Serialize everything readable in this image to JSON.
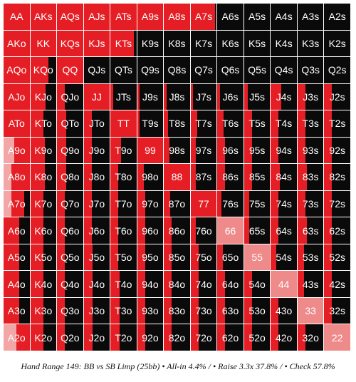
{
  "colors": {
    "allin": "#e41e24",
    "raise": "#e41e24",
    "pair_raise": "#ee8a8a",
    "check": "#0a0a0a",
    "text": "#ffffff"
  },
  "caption": "Hand Range 149: BB vs SB Limp (25bb) • All-in 4.4% / • Raise 3.3x 37.8% / • Check 57.8%",
  "grid": {
    "labels": [
      [
        "AA",
        "AKs",
        "AQs",
        "AJs",
        "ATs",
        "A9s",
        "A8s",
        "A7s",
        "A6s",
        "A5s",
        "A4s",
        "A3s",
        "A2s"
      ],
      [
        "AKo",
        "KK",
        "KQs",
        "KJs",
        "KTs",
        "K9s",
        "K8s",
        "K7s",
        "K6s",
        "K5s",
        "K4s",
        "K3s",
        "K2s"
      ],
      [
        "AQo",
        "KQo",
        "QQ",
        "QJs",
        "QTs",
        "Q9s",
        "Q8s",
        "Q7s",
        "Q6s",
        "Q5s",
        "Q4s",
        "Q3s",
        "Q2s"
      ],
      [
        "AJo",
        "KJo",
        "QJo",
        "JJ",
        "JTs",
        "J9s",
        "J8s",
        "J7s",
        "J6s",
        "J5s",
        "J4s",
        "J3s",
        "J2s"
      ],
      [
        "ATo",
        "KTo",
        "QTo",
        "JTo",
        "TT",
        "T9s",
        "T8s",
        "T7s",
        "T6s",
        "T5s",
        "T4s",
        "T3s",
        "T2s"
      ],
      [
        "A9o",
        "K9o",
        "Q9o",
        "J9o",
        "T9o",
        "99",
        "98s",
        "97s",
        "96s",
        "95s",
        "94s",
        "93s",
        "92s"
      ],
      [
        "A8o",
        "K8o",
        "Q8o",
        "J8o",
        "T8o",
        "98o",
        "88",
        "87s",
        "86s",
        "85s",
        "84s",
        "83s",
        "82s"
      ],
      [
        "A7o",
        "K7o",
        "Q7o",
        "J7o",
        "T7o",
        "97o",
        "87o",
        "77",
        "76s",
        "75s",
        "74s",
        "73s",
        "72s"
      ],
      [
        "A6o",
        "K6o",
        "Q6o",
        "J6o",
        "T6o",
        "96o",
        "86o",
        "76o",
        "66",
        "65s",
        "64s",
        "63s",
        "62s"
      ],
      [
        "A5o",
        "K5o",
        "Q5o",
        "J5o",
        "T5o",
        "95o",
        "85o",
        "75o",
        "65o",
        "55",
        "54s",
        "53s",
        "52s"
      ],
      [
        "A4o",
        "K4o",
        "Q4o",
        "J4o",
        "T4o",
        "94o",
        "84o",
        "74o",
        "64o",
        "54o",
        "44",
        "43s",
        "42s"
      ],
      [
        "A3o",
        "K3o",
        "Q3o",
        "J3o",
        "T3o",
        "93o",
        "83o",
        "73o",
        "63o",
        "53o",
        "43o",
        "33",
        "32s"
      ],
      [
        "A2o",
        "K2o",
        "Q2o",
        "J2o",
        "T2o",
        "92o",
        "82o",
        "72o",
        "62o",
        "52o",
        "42o",
        "32o",
        "22"
      ]
    ],
    "freq": [
      [
        [
          0,
          1,
          0
        ],
        [
          0,
          1,
          0
        ],
        [
          0,
          1,
          0
        ],
        [
          0,
          1,
          0
        ],
        [
          0,
          1,
          0
        ],
        [
          0,
          1,
          0
        ],
        [
          0,
          1,
          0
        ],
        [
          0,
          0.95,
          0.05
        ],
        [
          0,
          0,
          1
        ],
        [
          0,
          0,
          1
        ],
        [
          0,
          0,
          1
        ],
        [
          0,
          0,
          1
        ],
        [
          0,
          0,
          1
        ]
      ],
      [
        [
          0,
          1,
          0
        ],
        [
          0,
          1,
          0
        ],
        [
          0,
          1,
          0
        ],
        [
          0,
          1,
          0
        ],
        [
          0,
          0.9,
          0.1
        ],
        [
          0,
          0,
          1
        ],
        [
          0,
          0,
          1
        ],
        [
          0,
          0,
          1
        ],
        [
          0,
          0,
          1
        ],
        [
          0,
          0,
          1
        ],
        [
          0,
          0,
          1
        ],
        [
          0,
          0,
          1
        ],
        [
          0,
          0,
          1
        ]
      ],
      [
        [
          0,
          1,
          0
        ],
        [
          0,
          0.7,
          0.3
        ],
        [
          0,
          1,
          0
        ],
        [
          0,
          0,
          1
        ],
        [
          0,
          0,
          1
        ],
        [
          0,
          0,
          1
        ],
        [
          0,
          0,
          1
        ],
        [
          0,
          0,
          1
        ],
        [
          0,
          0,
          1
        ],
        [
          0,
          0,
          1
        ],
        [
          0,
          0,
          1
        ],
        [
          0,
          0,
          1
        ],
        [
          0,
          0,
          1
        ]
      ],
      [
        [
          0,
          1,
          0
        ],
        [
          0,
          0.6,
          0.4
        ],
        [
          0,
          0.3,
          0.7
        ],
        [
          0,
          1,
          0
        ],
        [
          0,
          0.1,
          0.9
        ],
        [
          0,
          0.1,
          0.9
        ],
        [
          0,
          0.1,
          0.9
        ],
        [
          0,
          0.1,
          0.9
        ],
        [
          0,
          0.1,
          0.9
        ],
        [
          0,
          0.15,
          0.85
        ],
        [
          0,
          0.4,
          0.6
        ],
        [
          0,
          0.3,
          0.7
        ],
        [
          0,
          0.3,
          0.7
        ]
      ],
      [
        [
          0,
          1,
          0
        ],
        [
          0,
          0.5,
          0.5
        ],
        [
          0,
          0.35,
          0.65
        ],
        [
          0,
          0.3,
          0.7
        ],
        [
          0,
          1,
          0
        ],
        [
          0,
          0.1,
          0.9
        ],
        [
          0,
          0.15,
          0.85
        ],
        [
          0,
          0.25,
          0.75
        ],
        [
          0,
          0.25,
          0.75
        ],
        [
          0,
          0.3,
          0.7
        ],
        [
          0,
          0.3,
          0.7
        ],
        [
          0,
          0.3,
          0.7
        ],
        [
          0,
          0.3,
          0.7
        ]
      ],
      [
        [
          0.4,
          0.6,
          0
        ],
        [
          0,
          0.55,
          0.45
        ],
        [
          0,
          0.35,
          0.65
        ],
        [
          0,
          0.3,
          0.7
        ],
        [
          0,
          0.4,
          0.6
        ],
        [
          0,
          1,
          0
        ],
        [
          0,
          0.2,
          0.8
        ],
        [
          0,
          0.2,
          0.8
        ],
        [
          0,
          0.3,
          0.7
        ],
        [
          0,
          0.3,
          0.7
        ],
        [
          0,
          0.3,
          0.7
        ],
        [
          0,
          0.3,
          0.7
        ],
        [
          0,
          0.3,
          0.7
        ]
      ],
      [
        [
          0.3,
          0.7,
          0
        ],
        [
          0,
          0.55,
          0.45
        ],
        [
          0,
          0.35,
          0.65
        ],
        [
          0,
          0.3,
          0.7
        ],
        [
          0,
          0.3,
          0.7
        ],
        [
          0,
          0.25,
          0.75
        ],
        [
          0,
          1,
          0
        ],
        [
          0,
          0.2,
          0.8
        ],
        [
          0,
          0.3,
          0.7
        ],
        [
          0,
          0.3,
          0.7
        ],
        [
          0,
          0.35,
          0.65
        ],
        [
          0,
          0.35,
          0.65
        ],
        [
          0,
          0.3,
          0.7
        ]
      ],
      [
        [
          0.3,
          0.5,
          0.2
        ],
        [
          0,
          0.5,
          0.5
        ],
        [
          0,
          0.3,
          0.7
        ],
        [
          0,
          0.3,
          0.7
        ],
        [
          0,
          0.3,
          0.7
        ],
        [
          0,
          0.3,
          0.7
        ],
        [
          0,
          0.25,
          0.75
        ],
        [
          0,
          1,
          0
        ],
        [
          0,
          0.15,
          0.85
        ],
        [
          0,
          0.2,
          0.8
        ],
        [
          0,
          0.3,
          0.7
        ],
        [
          0,
          0.3,
          0.7
        ],
        [
          0,
          0.3,
          0.7
        ]
      ],
      [
        [
          0,
          0.6,
          0.4
        ],
        [
          0,
          0.5,
          0.5
        ],
        [
          0,
          0.3,
          0.7
        ],
        [
          0,
          0.3,
          0.7
        ],
        [
          0,
          0.3,
          0.7
        ],
        [
          0,
          0.3,
          0.7
        ],
        [
          0,
          0.3,
          0.7
        ],
        [
          0,
          0.2,
          0.8
        ],
        [
          0,
          0,
          1
        ],
        [
          0,
          0.2,
          0.8
        ],
        [
          0,
          0.3,
          0.7
        ],
        [
          0,
          0.35,
          0.65
        ],
        [
          0,
          0.3,
          0.7
        ]
      ],
      [
        [
          0,
          0.6,
          0.4
        ],
        [
          0,
          0.5,
          0.5
        ],
        [
          0,
          0.3,
          0.7
        ],
        [
          0,
          0.35,
          0.65
        ],
        [
          0,
          0.3,
          0.7
        ],
        [
          0,
          0.3,
          0.7
        ],
        [
          0,
          0.3,
          0.7
        ],
        [
          0,
          0.3,
          0.7
        ],
        [
          0,
          0.2,
          0.8
        ],
        [
          0,
          0,
          1
        ],
        [
          0,
          0.2,
          0.8
        ],
        [
          0,
          0.25,
          0.75
        ],
        [
          0,
          0.3,
          0.7
        ]
      ],
      [
        [
          0,
          0.6,
          0.4
        ],
        [
          0,
          0.5,
          0.5
        ],
        [
          0,
          0.3,
          0.7
        ],
        [
          0,
          0.35,
          0.65
        ],
        [
          0,
          0.35,
          0.65
        ],
        [
          0,
          0.3,
          0.7
        ],
        [
          0,
          0.3,
          0.7
        ],
        [
          0,
          0.3,
          0.7
        ],
        [
          0,
          0.3,
          0.7
        ],
        [
          0,
          0.3,
          0.7
        ],
        [
          0,
          0,
          1
        ],
        [
          0,
          0.25,
          0.75
        ],
        [
          0,
          0.3,
          0.7
        ]
      ],
      [
        [
          0,
          0.6,
          0.4
        ],
        [
          0,
          0.5,
          0.5
        ],
        [
          0,
          0.3,
          0.7
        ],
        [
          0,
          0.35,
          0.65
        ],
        [
          0,
          0.35,
          0.65
        ],
        [
          0,
          0.3,
          0.7
        ],
        [
          0,
          0.3,
          0.7
        ],
        [
          0,
          0.3,
          0.7
        ],
        [
          0,
          0.3,
          0.7
        ],
        [
          0,
          0.3,
          0.7
        ],
        [
          0,
          0.3,
          0.7
        ],
        [
          0,
          0,
          1
        ],
        [
          0,
          0.3,
          0.7
        ]
      ],
      [
        [
          0.5,
          0.5,
          0
        ],
        [
          0,
          0.5,
          0.5
        ],
        [
          0,
          0.3,
          0.7
        ],
        [
          0,
          0.35,
          0.65
        ],
        [
          0,
          0.35,
          0.65
        ],
        [
          0,
          0.3,
          0.7
        ],
        [
          0,
          0.3,
          0.7
        ],
        [
          0,
          0.3,
          0.7
        ],
        [
          0,
          0.3,
          0.7
        ],
        [
          0,
          0.3,
          0.7
        ],
        [
          0,
          0.3,
          0.7
        ],
        [
          0,
          0.3,
          0.7
        ],
        [
          0,
          0,
          1
        ]
      ]
    ],
    "pair_fill": {
      "66": 1,
      "55": 1,
      "44": 1,
      "33": 1,
      "22": 1
    }
  }
}
